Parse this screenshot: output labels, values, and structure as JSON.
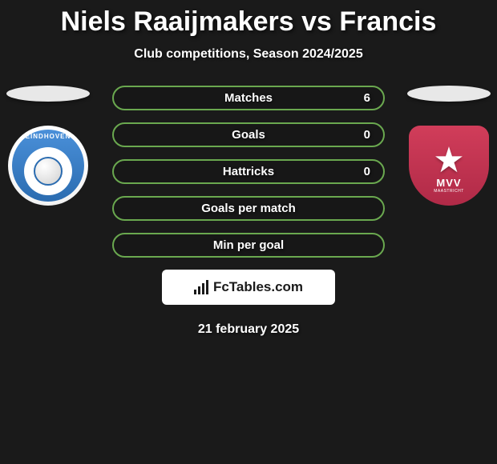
{
  "title": "Niels Raaijmakers vs Francis",
  "subtitle": "Club competitions, Season 2024/2025",
  "stats": [
    {
      "label": "Matches",
      "value": "6"
    },
    {
      "label": "Goals",
      "value": "0"
    },
    {
      "label": "Hattricks",
      "value": "0"
    },
    {
      "label": "Goals per match",
      "value": ""
    },
    {
      "label": "Min per goal",
      "value": ""
    }
  ],
  "left_club": {
    "top_text": "EINDHOVEN",
    "badge_colors": {
      "outer": "#ffffff",
      "inner_top": "#4a90d9",
      "inner_bottom": "#2b6cb0"
    }
  },
  "right_club": {
    "text": "MVV",
    "sub": "MAASTRICHT",
    "badge_colors": {
      "top": "#d13d5a",
      "bottom": "#b02a47"
    }
  },
  "footer": {
    "brand": "FcTables.com"
  },
  "date": "21 february 2025",
  "theme": {
    "background": "#1a1a1a",
    "pill_border": "#6aa84f",
    "text": "#ffffff"
  }
}
